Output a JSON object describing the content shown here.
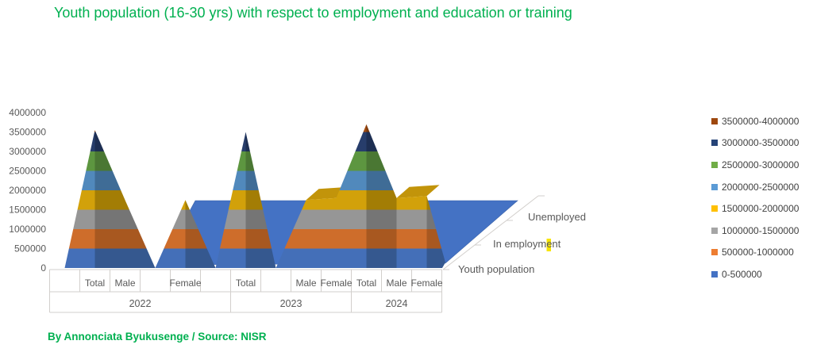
{
  "footer": {
    "credit": "By Annonciata Byukusenge / Source: NISR"
  },
  "colors": {
    "title_green": "#00B050",
    "axis_text": "#595959",
    "legend_text": "#404040",
    "axis_line": "#D2CFCC",
    "plateau_blue": "#4472C4",
    "plateau_edge": "#3A62A8",
    "ridge_cap_gold": "#C2940A",
    "highlight_yellow": "#F7E400"
  },
  "chart_data": {
    "type": "surface",
    "title": "Youth population (16-30 yrs) with respect to employment and education or training",
    "value_axis": {
      "min": 0,
      "max": 4000000,
      "tick_labels": [
        "0",
        "500000",
        "1000000",
        "1500000",
        "2000000",
        "2500000",
        "3000000",
        "3500000",
        "4000000"
      ]
    },
    "category_axis": {
      "cells": [
        "",
        "Total",
        "Male",
        "",
        "Female",
        "",
        "Total",
        "",
        "Male",
        "Female",
        "Total",
        "Male",
        "Female"
      ],
      "year_groups": [
        {
          "label": "2022",
          "from": 0,
          "to": 5
        },
        {
          "label": "2023",
          "from": 6,
          "to": 9
        },
        {
          "label": "2024",
          "from": 10,
          "to": 12
        }
      ]
    },
    "depth_axis": {
      "labels_front_to_back": [
        "Youth population",
        "In employment",
        "Unemployed"
      ]
    },
    "series": [
      {
        "name": "Youth population",
        "values": [
          0,
          3550000,
          1750000,
          0,
          1750000,
          0,
          3500000,
          0,
          1750000,
          1800000,
          3700000,
          1800000,
          1850000
        ]
      },
      {
        "name": "In employment",
        "values": [
          0,
          0,
          0,
          0,
          0,
          0,
          0,
          0,
          0,
          0,
          0,
          0,
          0
        ]
      },
      {
        "name": "Unemployed",
        "values": [
          0,
          0,
          0,
          0,
          0,
          0,
          0,
          0,
          0,
          0,
          0,
          0,
          0
        ]
      }
    ],
    "bands": [
      {
        "label": "0-500000",
        "color": "#4472C4",
        "lit": "#446FB8",
        "shaded": "#35588F"
      },
      {
        "label": "500000-1000000",
        "color": "#ED7D31",
        "lit": "#CE6D2B",
        "shaded": "#A85820"
      },
      {
        "label": "1000000-1500000",
        "color": "#A5A5A5",
        "lit": "#969696",
        "shaded": "#757575"
      },
      {
        "label": "1500000-2000000",
        "color": "#FFC000",
        "lit": "#D2A10A",
        "shaded": "#A37D05"
      },
      {
        "label": "2000000-2500000",
        "color": "#5B9BD5",
        "lit": "#5189BC",
        "shaded": "#3F6C96"
      },
      {
        "label": "2500000-3000000",
        "color": "#70AD47",
        "lit": "#5D9640",
        "shaded": "#4A7733"
      },
      {
        "label": "3000000-3500000",
        "color": "#264478",
        "lit": "#273D6B",
        "shaded": "#1D2E52"
      },
      {
        "label": "3500000-4000000",
        "color": "#9E480E",
        "lit": "#A04B10",
        "shaded": "#7C3A0C"
      }
    ],
    "legend_position": "right",
    "gridlines": false
  }
}
